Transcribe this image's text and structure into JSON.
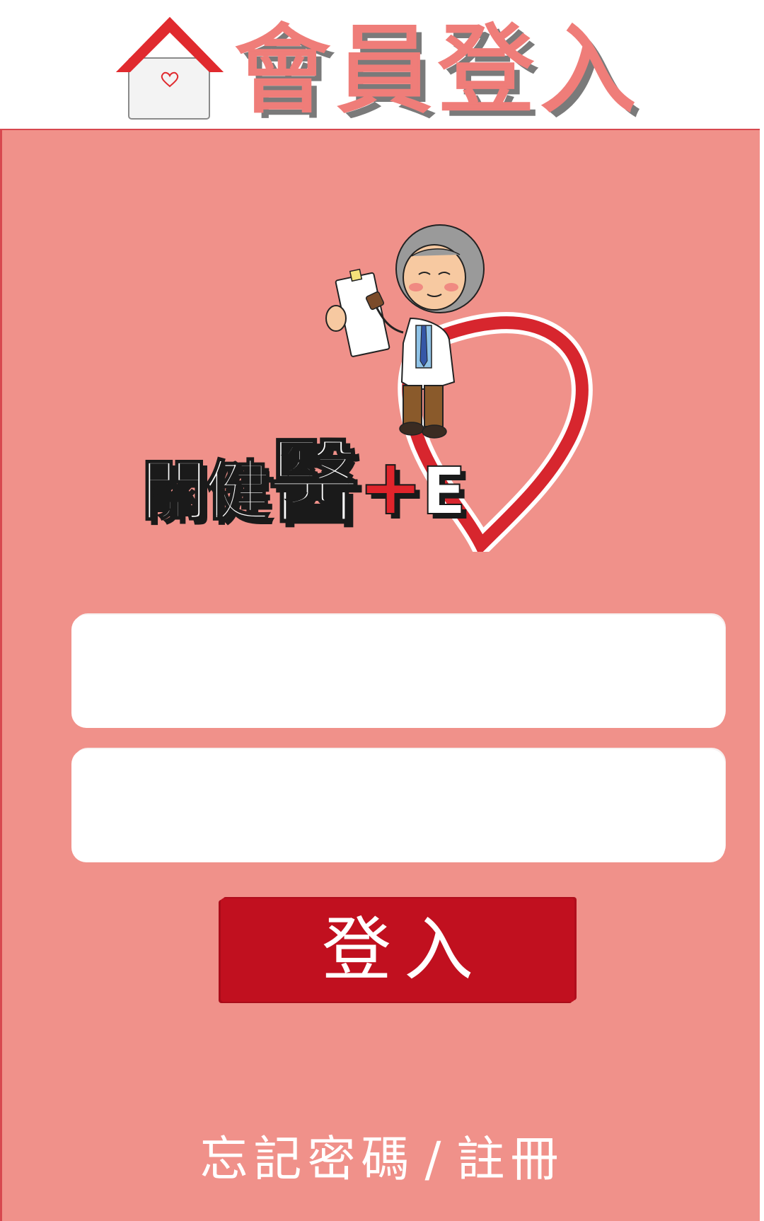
{
  "header": {
    "title": "會員登入",
    "home_icon": "home-icon"
  },
  "logo": {
    "text_part1": "關健",
    "text_big": "醫",
    "text_plus": "+",
    "text_e": "E",
    "mascot_icon": "doctor-mascot",
    "heart_icon": "heart-icon"
  },
  "form": {
    "account_value": "",
    "account_placeholder": "",
    "password_value": "",
    "password_placeholder": "",
    "login_label": "登入"
  },
  "links": {
    "forgot_password": "忘記密碼",
    "separator": "/",
    "register": "註冊"
  },
  "colors": {
    "panel": "#f0918a",
    "title": "#ef7d79",
    "button": "#c1101f",
    "roof": "#e02a2e"
  }
}
